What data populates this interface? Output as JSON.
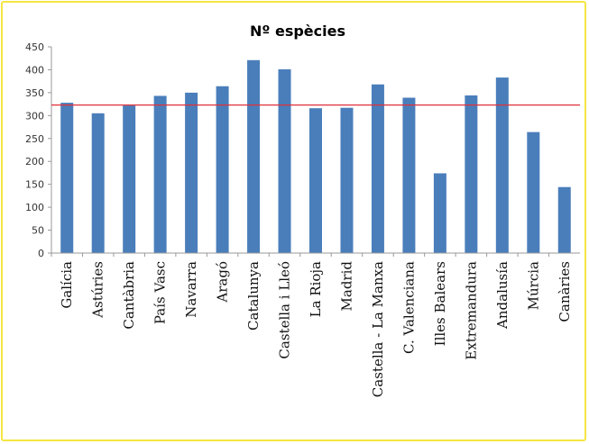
{
  "chart_data": {
    "type": "bar",
    "title": "Nº espècies",
    "xlabel": "",
    "ylabel": "",
    "ylim": [
      0,
      450
    ],
    "y_ticks": [
      "0",
      "50",
      "100",
      "150",
      "200",
      "250",
      "300",
      "350",
      "400",
      "450"
    ],
    "categories": [
      "Galícia",
      "Astúries",
      "Cantàbria",
      "País Vasc",
      "Navarra",
      "Aragó",
      "Catalunya",
      "Castella i Lleó",
      "La Rioja",
      "Madrid",
      "Castella - La Manxa",
      "C. Valenciana",
      "Illes Balears",
      "Extremandura",
      "Andalusía",
      "Múrcia",
      "Canàries"
    ],
    "values": [
      328,
      305,
      322,
      343,
      350,
      364,
      421,
      401,
      316,
      317,
      368,
      339,
      174,
      344,
      383,
      264,
      144
    ],
    "reference_line": 323,
    "bar_color": "#4a7ebb",
    "reference_line_color": "#e0303a",
    "grid": false,
    "legend": "none"
  },
  "colors": {
    "frame_border": "#f5e642",
    "background": "#ffffff"
  }
}
